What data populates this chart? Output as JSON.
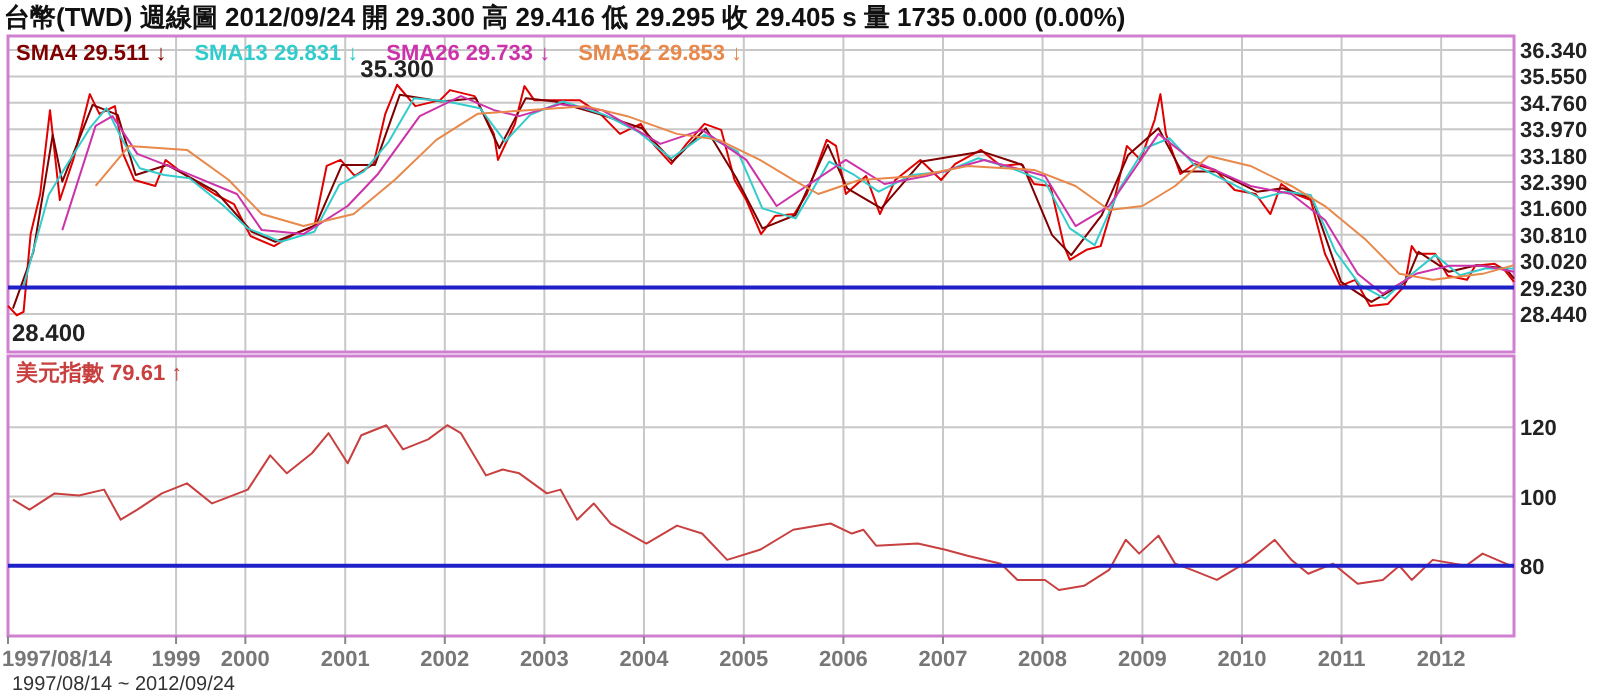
{
  "chart_data": [
    {
      "type": "line",
      "title": "台幣(TWD)  週線圖  2012/09/24  開 29.300  高 29.416  低 29.295  收 29.405 s  量 1735  0.000 (0.00%)",
      "legend": "top left",
      "grid": true,
      "tick_labels": "y",
      "xlim": [
        "1997-08-14",
        "2012-09-24"
      ],
      "ylim": [
        27.3,
        36.76
      ],
      "xticks": [
        {
          "value": "1997-08-14",
          "label": null
        },
        {
          "value": "1999-04-22",
          "label": null
        },
        {
          "value": "2000-01-01",
          "label": null
        },
        {
          "value": "2001-01-01",
          "label": null
        },
        {
          "value": "2002-01-01",
          "label": null
        },
        {
          "value": "2003-01-01",
          "label": null
        },
        {
          "value": "2004-01-01",
          "label": null
        },
        {
          "value": "2005-01-01",
          "label": null
        },
        {
          "value": "2006-01-01",
          "label": null
        },
        {
          "value": "2007-01-01",
          "label": null
        },
        {
          "value": "2008-01-01",
          "label": null
        },
        {
          "value": "2009-01-01",
          "label": null
        },
        {
          "value": "2010-01-01",
          "label": null
        },
        {
          "value": "2011-01-01",
          "label": null
        },
        {
          "value": "2012-01-01",
          "label": null
        }
      ],
      "yticks": [
        {
          "value": 36.34,
          "label": "36.340"
        },
        {
          "value": 35.55,
          "label": "35.550"
        },
        {
          "value": 34.76,
          "label": "34.760"
        },
        {
          "value": 33.97,
          "label": "33.970"
        },
        {
          "value": 33.18,
          "label": "33.180"
        },
        {
          "value": 32.39,
          "label": "32.390"
        },
        {
          "value": 31.6,
          "label": "31.600"
        },
        {
          "value": 30.81,
          "label": "30.810"
        },
        {
          "value": 30.02,
          "label": "30.020"
        },
        {
          "value": 29.23,
          "label": "29.230"
        },
        {
          "value": 28.44,
          "label": "28.440"
        }
      ],
      "ref_lines": [
        {
          "axis": "y",
          "value": 29.23,
          "color": "#2020c8"
        }
      ],
      "annotations": [
        {
          "text": "35.300",
          "x": "2001-07-10",
          "y": 35.3
        },
        {
          "text": "28.400",
          "x": "1997-09-15",
          "y": 28.4
        }
      ],
      "series": [
        {
          "color": "#e00000",
          "x": [
            "1997-08-14",
            "1997-09-15",
            "1997-10-10",
            "1997-11-05",
            "1997-12-10",
            "1998-01-15",
            "1998-02-20",
            "1998-04-10",
            "1998-06-10",
            "1998-07-15",
            "1998-09-10",
            "1998-10-10",
            "1998-11-20",
            "1999-02-05",
            "1999-03-15",
            "1999-05-20",
            "1999-09-10",
            "1999-11-20",
            "2000-01-20",
            "2000-04-15",
            "2000-06-28",
            "2000-09-10",
            "2000-10-25",
            "2000-12-15",
            "2001-02-05",
            "2001-04-15",
            "2001-05-28",
            "2001-07-10",
            "2001-09-15",
            "2001-12-15",
            "2002-01-20",
            "2002-04-20",
            "2002-06-30",
            "2002-07-15",
            "2002-09-15",
            "2002-10-20",
            "2002-11-25",
            "2003-02-05",
            "2003-05-10",
            "2003-07-25",
            "2003-10-05",
            "2003-12-20",
            "2004-02-10",
            "2004-04-10",
            "2004-06-05",
            "2004-08-10",
            "2004-10-10",
            "2004-11-28",
            "2005-01-10",
            "2005-03-05",
            "2005-04-25",
            "2005-07-05",
            "2005-08-20",
            "2005-11-01",
            "2005-12-05",
            "2006-01-10",
            "2006-03-25",
            "2006-05-15",
            "2006-07-10",
            "2006-10-10",
            "2006-12-25",
            "2007-02-15",
            "2007-05-20",
            "2007-08-01",
            "2007-10-15",
            "2007-12-01",
            "2008-01-30",
            "2008-03-20",
            "2008-04-10",
            "2008-06-10",
            "2008-08-01",
            "2008-09-20",
            "2008-11-05",
            "2008-12-25",
            "2009-02-15",
            "2009-03-08",
            "2009-03-28",
            "2009-05-20",
            "2009-07-10",
            "2009-09-25",
            "2009-12-05",
            "2010-02-20",
            "2010-04-15",
            "2010-05-25",
            "2010-07-15",
            "2010-09-10",
            "2010-11-01",
            "2010-12-28",
            "2011-02-20",
            "2011-04-15",
            "2011-06-20",
            "2011-08-20",
            "2011-09-15",
            "2011-10-05",
            "2011-12-10",
            "2012-01-25",
            "2012-04-05",
            "2012-05-05",
            "2012-07-15",
            "2012-08-20",
            "2012-09-24"
          ],
          "values": [
            28.68,
            28.4,
            28.5,
            30.83,
            32.03,
            34.54,
            31.85,
            33.05,
            35.02,
            34.43,
            34.66,
            33.23,
            32.45,
            32.27,
            33.05,
            32.63,
            32.03,
            31.73,
            30.77,
            30.47,
            30.83,
            31.07,
            32.87,
            33.05,
            32.57,
            32.93,
            34.43,
            35.3,
            34.66,
            34.84,
            35.14,
            34.96,
            33.83,
            33.05,
            34.13,
            35.26,
            34.84,
            34.84,
            34.84,
            34.43,
            33.83,
            34.13,
            33.47,
            32.93,
            33.53,
            34.13,
            33.95,
            32.45,
            31.85,
            30.83,
            31.37,
            31.43,
            32.03,
            33.65,
            33.47,
            32.03,
            32.57,
            31.43,
            32.45,
            33.05,
            32.45,
            32.93,
            33.35,
            32.87,
            32.93,
            32.33,
            32.27,
            30.47,
            30.06,
            30.36,
            30.47,
            31.85,
            33.47,
            33.05,
            34.25,
            35.02,
            33.83,
            32.63,
            32.93,
            32.75,
            32.15,
            32.03,
            31.43,
            32.33,
            32.03,
            31.85,
            30.24,
            29.28,
            29.46,
            28.68,
            28.74,
            29.28,
            30.47,
            30.24,
            30.24,
            29.58,
            29.46,
            29.88,
            29.94,
            29.76,
            29.4
          ]
        },
        {
          "name": "SMA4 29.511 ↓",
          "color": "#800000",
          "x": [
            "1997-09-01",
            "1997-11-15",
            "1998-01-25",
            "1998-03-01",
            "1998-06-20",
            "1998-09-20",
            "1998-11-25",
            "1999-03-20",
            "1999-09-15",
            "2000-01-25",
            "2000-04-20",
            "2000-09-15",
            "2000-12-20",
            "2001-04-20",
            "2001-07-20",
            "2001-12-20",
            "2002-04-25",
            "2002-07-20",
            "2002-10-25",
            "2003-02-10",
            "2003-07-30",
            "2003-12-25",
            "2004-04-15",
            "2004-08-15",
            "2004-12-05",
            "2005-03-10",
            "2005-07-10",
            "2005-11-05",
            "2006-01-15",
            "2006-05-20",
            "2006-10-15",
            "2007-05-25",
            "2007-10-20",
            "2008-02-05",
            "2008-04-15",
            "2008-08-05",
            "2008-11-10",
            "2009-03-01",
            "2009-05-25",
            "2009-09-30",
            "2010-02-25",
            "2010-05-30",
            "2010-09-15",
            "2010-12-30",
            "2011-04-20",
            "2011-08-25",
            "2011-10-10",
            "2012-01-30",
            "2012-05-10",
            "2012-08-25",
            "2012-09-24"
          ],
          "values": [
            28.6,
            30.3,
            33.8,
            32.4,
            34.7,
            34.4,
            32.6,
            32.9,
            32.1,
            30.9,
            30.6,
            31.1,
            32.9,
            32.9,
            35.0,
            34.8,
            34.9,
            33.4,
            34.9,
            34.8,
            34.4,
            34.0,
            33.0,
            34.0,
            32.5,
            31.0,
            31.4,
            33.5,
            32.2,
            31.6,
            33.0,
            33.3,
            32.9,
            30.8,
            30.2,
            31.4,
            33.2,
            34.0,
            32.7,
            32.7,
            32.1,
            32.2,
            31.9,
            29.4,
            28.8,
            29.4,
            30.3,
            29.7,
            29.9,
            29.8,
            29.5
          ]
        },
        {
          "name": "SMA13 29.831 ↓",
          "color": "#33cccc",
          "x": [
            "1997-10-10",
            "1998-01-10",
            "1998-03-10",
            "1998-06-10",
            "1998-08-10",
            "1998-10-10",
            "1998-12-10",
            "1999-03-10",
            "1999-06-10",
            "1999-10-10",
            "2000-01-10",
            "2000-05-10",
            "2000-09-10",
            "2000-12-10",
            "2001-03-10",
            "2001-06-10",
            "2001-09-10",
            "2002-01-10",
            "2002-05-10",
            "2002-08-10",
            "2002-11-10",
            "2003-03-10",
            "2003-08-10",
            "2003-12-10",
            "2004-04-10",
            "2004-08-10",
            "2004-12-10",
            "2005-03-10",
            "2005-07-10",
            "2005-11-10",
            "2006-02-10",
            "2006-05-10",
            "2006-09-10",
            "2007-01-10",
            "2007-05-10",
            "2007-09-10",
            "2008-01-10",
            "2008-04-10",
            "2008-07-10",
            "2008-10-10",
            "2009-01-10",
            "2009-04-10",
            "2009-07-10",
            "2009-11-10",
            "2010-03-10",
            "2010-06-10",
            "2010-09-10",
            "2010-12-10",
            "2011-03-10",
            "2011-06-10",
            "2011-09-10",
            "2011-12-10",
            "2012-03-10",
            "2012-06-10",
            "2012-09-24"
          ],
          "values": [
            29.28,
            32.0,
            32.8,
            34.0,
            34.6,
            33.6,
            32.8,
            32.6,
            32.5,
            31.7,
            31.0,
            30.6,
            30.9,
            32.3,
            32.7,
            33.6,
            34.9,
            34.8,
            34.6,
            33.6,
            34.4,
            34.8,
            34.4,
            33.9,
            33.1,
            33.8,
            33.3,
            31.6,
            31.3,
            33.0,
            32.6,
            32.1,
            32.6,
            32.7,
            33.1,
            32.8,
            32.4,
            31.0,
            30.5,
            32.2,
            33.4,
            33.7,
            32.9,
            32.4,
            31.9,
            32.1,
            32.0,
            30.3,
            29.3,
            28.9,
            29.6,
            30.2,
            29.6,
            29.8,
            29.8
          ]
        },
        {
          "name": "SMA26 29.733 ↓",
          "color": "#cc33aa",
          "x": [
            "1998-03-01",
            "1998-07-01",
            "1998-09-01",
            "1998-12-01",
            "1999-05-01",
            "1999-12-01",
            "2000-03-01",
            "2000-08-01",
            "2001-01-10",
            "2001-05-01",
            "2001-10-01",
            "2002-03-01",
            "2002-07-01",
            "2002-10-01",
            "2003-03-01",
            "2003-08-01",
            "2004-03-01",
            "2004-08-01",
            "2005-01-10",
            "2005-05-01",
            "2006-01-10",
            "2006-06-01",
            "2006-11-01",
            "2007-06-01",
            "2008-01-10",
            "2008-05-01",
            "2008-09-01",
            "2009-03-01",
            "2009-07-01",
            "2010-02-01",
            "2010-07-01",
            "2010-11-01",
            "2011-03-01",
            "2011-06-01",
            "2011-10-01",
            "2012-02-01",
            "2012-06-01",
            "2012-09-24"
          ],
          "values": [
            30.95,
            34.07,
            34.36,
            33.23,
            32.75,
            32.03,
            30.95,
            30.83,
            31.67,
            32.63,
            34.36,
            34.96,
            34.54,
            34.36,
            34.72,
            34.54,
            33.53,
            33.95,
            33.05,
            31.67,
            33.05,
            32.33,
            32.57,
            33.05,
            32.57,
            31.07,
            31.67,
            33.83,
            33.05,
            32.27,
            32.03,
            31.25,
            29.64,
            29.04,
            29.64,
            29.88,
            29.88,
            29.7
          ]
        },
        {
          "name": "SMA52 29.853 ↓",
          "color": "#e8884a",
          "x": [
            "1998-07-01",
            "1998-11-01",
            "1999-06-01",
            "1999-11-01",
            "2000-03-01",
            "2000-08-01",
            "2001-02-01",
            "2001-07-01",
            "2001-12-01",
            "2002-05-01",
            "2002-11-01",
            "2003-06-01",
            "2003-11-01",
            "2004-05-01",
            "2004-10-01",
            "2005-03-01",
            "2005-07-01",
            "2005-10-01",
            "2006-03-01",
            "2006-10-01",
            "2007-04-01",
            "2007-12-01",
            "2008-05-01",
            "2008-09-01",
            "2009-01-01",
            "2009-05-01",
            "2009-09-01",
            "2010-02-01",
            "2010-07-01",
            "2010-11-01",
            "2011-04-01",
            "2011-08-01",
            "2011-12-01",
            "2012-06-01",
            "2012-09-24"
          ],
          "values": [
            32.27,
            33.47,
            33.35,
            32.45,
            31.43,
            31.07,
            31.43,
            32.45,
            33.65,
            34.43,
            34.54,
            34.66,
            34.36,
            33.83,
            33.65,
            33.05,
            32.45,
            32.03,
            32.45,
            32.57,
            32.87,
            32.75,
            32.27,
            31.55,
            31.67,
            32.27,
            33.17,
            32.87,
            32.27,
            31.67,
            30.65,
            29.64,
            29.46,
            29.64,
            29.9
          ]
        }
      ]
    },
    {
      "type": "line",
      "legend": "top left",
      "grid": true,
      "xlim": [
        "1997-08-14",
        "2012-09-24"
      ],
      "ylim": [
        59.7,
        140.6
      ],
      "xticks": [
        {
          "value": "1997-08-14",
          "label": "1997/08/14"
        },
        {
          "value": "1999-04-22",
          "label": "1999"
        },
        {
          "value": "2000-01-01",
          "label": "2000"
        },
        {
          "value": "2001-01-01",
          "label": "2001"
        },
        {
          "value": "2002-01-01",
          "label": "2002"
        },
        {
          "value": "2003-01-01",
          "label": "2003"
        },
        {
          "value": "2004-01-01",
          "label": "2004"
        },
        {
          "value": "2005-01-01",
          "label": "2005"
        },
        {
          "value": "2006-01-01",
          "label": "2006"
        },
        {
          "value": "2007-01-01",
          "label": "2007"
        },
        {
          "value": "2008-01-01",
          "label": "2008"
        },
        {
          "value": "2009-01-01",
          "label": "2009"
        },
        {
          "value": "2010-01-01",
          "label": "2010"
        },
        {
          "value": "2011-01-01",
          "label": "2011"
        },
        {
          "value": "2012-01-01",
          "label": "2012"
        }
      ],
      "yticks": [
        80,
        100,
        120
      ],
      "ref_lines": [
        {
          "axis": "y",
          "value": 80,
          "color": "#2020c8"
        }
      ],
      "annotations": [
        "1997/08/14 ~ 2012/09/24"
      ],
      "series": [
        {
          "name": "美元指數 79.61 ↑",
          "color": "#c84040",
          "x": [
            "1997-09-01",
            "1997-11-01",
            "1998-02-01",
            "1998-05-01",
            "1998-08-01",
            "1998-10-01",
            "1998-12-01",
            "1999-03-01",
            "1999-06-01",
            "1999-09-01",
            "2000-01-10",
            "2000-04-01",
            "2000-06-01",
            "2000-09-01",
            "2000-11-01",
            "2001-01-10",
            "2001-03-01",
            "2001-06-01",
            "2001-08-01",
            "2001-11-01",
            "2002-01-10",
            "2002-03-01",
            "2002-06-01",
            "2002-08-01",
            "2002-10-01",
            "2003-01-10",
            "2003-03-01",
            "2003-05-01",
            "2003-07-01",
            "2003-09-01",
            "2004-01-10",
            "2004-05-01",
            "2004-08-01",
            "2004-11-01",
            "2005-03-01",
            "2005-07-01",
            "2005-10-01",
            "2005-11-15",
            "2006-02-01",
            "2006-03-15",
            "2006-05-01",
            "2006-10-01",
            "2007-01-10",
            "2007-04-01",
            "2007-08-01",
            "2007-10-01",
            "2008-01-10",
            "2008-03-01",
            "2008-06-01",
            "2008-09-01",
            "2008-11-01",
            "2008-12-20",
            "2009-03-01",
            "2009-05-01",
            "2009-07-01",
            "2009-10-01",
            "2010-02-01",
            "2010-05-01",
            "2010-07-01",
            "2010-09-01",
            "2010-12-01",
            "2011-03-01",
            "2011-06-01",
            "2011-08-01",
            "2011-09-15",
            "2011-12-01",
            "2012-04-01",
            "2012-06-01",
            "2012-09-24"
          ],
          "values": [
            99.1,
            96.2,
            100.9,
            100.3,
            102.0,
            93.3,
            96.2,
            100.9,
            103.8,
            98.0,
            102.0,
            111.9,
            106.7,
            112.5,
            118.3,
            109.6,
            117.7,
            120.6,
            113.6,
            116.5,
            120.6,
            118.3,
            106.1,
            107.8,
            106.7,
            100.9,
            102.0,
            93.3,
            98.0,
            92.2,
            86.4,
            91.6,
            89.3,
            81.7,
            84.6,
            90.4,
            91.6,
            92.2,
            89.3,
            90.4,
            85.8,
            86.4,
            84.6,
            82.9,
            80.6,
            75.9,
            75.9,
            73.0,
            74.2,
            78.8,
            87.5,
            83.5,
            88.7,
            80.6,
            78.8,
            75.9,
            81.7,
            87.5,
            81.7,
            77.7,
            80.6,
            74.8,
            75.9,
            80.0,
            75.9,
            81.7,
            80.0,
            83.5,
            79.6
          ]
        }
      ]
    }
  ]
}
